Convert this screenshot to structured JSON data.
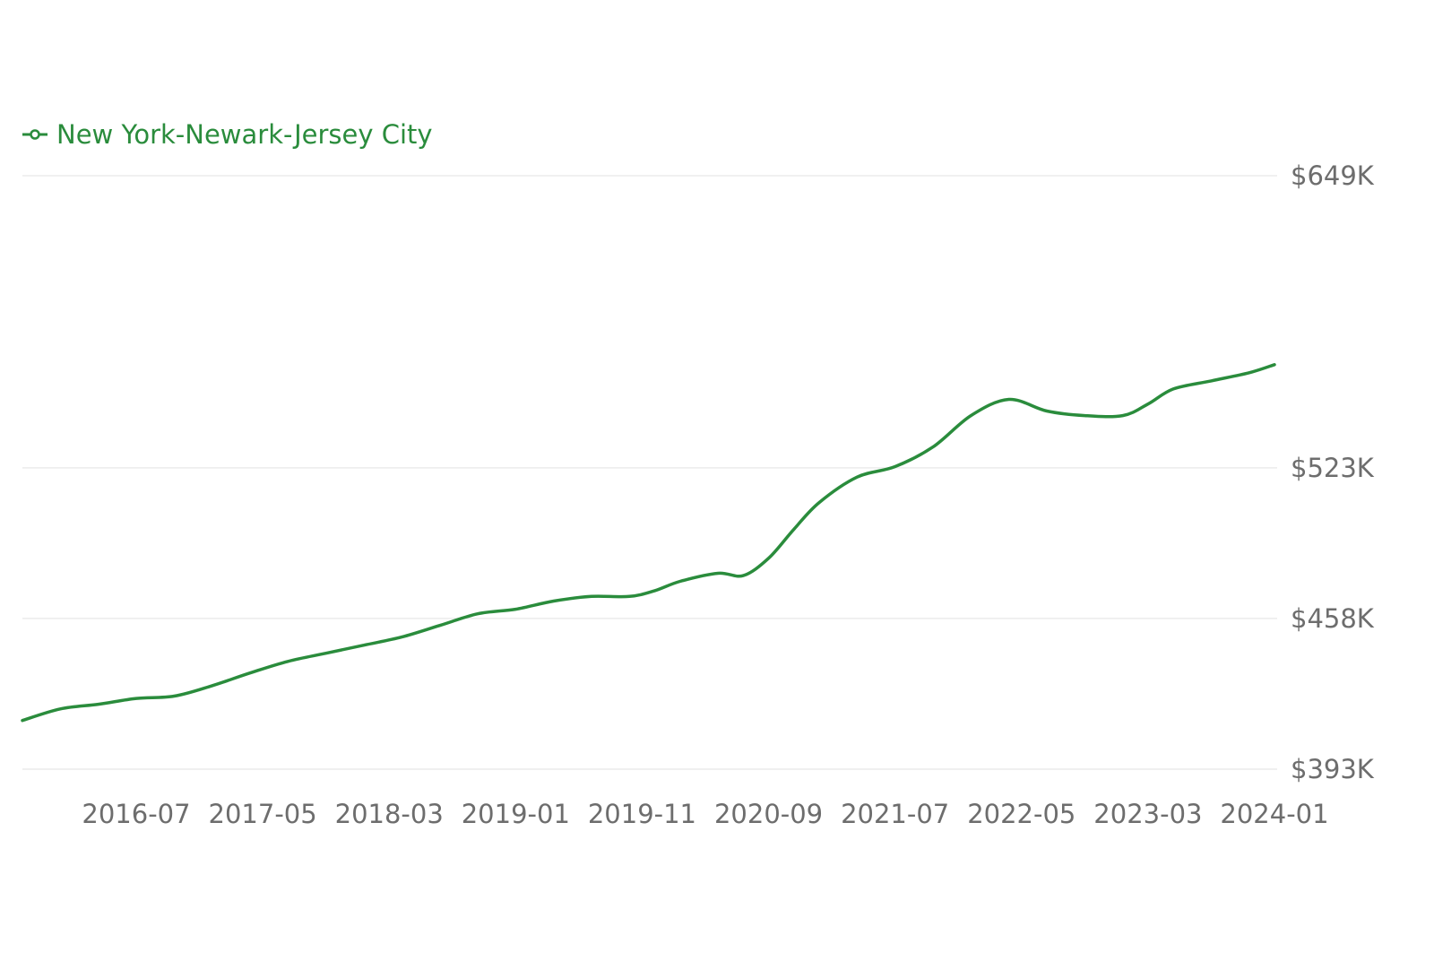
{
  "colors": {
    "series": "#2a8c3c",
    "grid": "#ececec",
    "tick_text": "#6d6d6d",
    "background": "#ffffff"
  },
  "legend": {
    "items": [
      {
        "label": "New York-Newark-Jersey City",
        "icon": "line-circle-marker-icon"
      }
    ]
  },
  "chart_data": {
    "type": "line",
    "title": "",
    "xlabel": "",
    "ylabel": "",
    "legend_position": "top-left",
    "grid": true,
    "y_axis_side": "right",
    "x_tick_labels": [
      "2016-07",
      "2017-05",
      "2018-03",
      "2019-01",
      "2019-11",
      "2020-09",
      "2021-07",
      "2022-05",
      "2023-03",
      "2024-01"
    ],
    "y_tick_values": [
      393000,
      458000,
      523000,
      649000
    ],
    "y_tick_labels": [
      "$393K",
      "$458K",
      "$523K",
      "$649K"
    ],
    "ylim": [
      393000,
      649000
    ],
    "xlim": [
      "2015-10",
      "2024-01"
    ],
    "series": [
      {
        "name": "New York-Newark-Jersey City",
        "x": [
          "2015-10",
          "2016-01",
          "2016-04",
          "2016-07",
          "2016-10",
          "2017-01",
          "2017-04",
          "2017-07",
          "2017-10",
          "2018-01",
          "2018-04",
          "2018-07",
          "2018-10",
          "2019-01",
          "2019-04",
          "2019-07",
          "2019-10",
          "2019-12",
          "2020-02",
          "2020-05",
          "2020-07",
          "2020-09",
          "2020-11",
          "2021-01",
          "2021-04",
          "2021-07",
          "2021-10",
          "2022-01",
          "2022-04",
          "2022-07",
          "2022-10",
          "2023-01",
          "2023-03",
          "2023-05",
          "2023-08",
          "2023-11",
          "2024-01"
        ],
        "values": [
          414000,
          419000,
          421000,
          423500,
          424500,
          429000,
          434500,
          439500,
          443000,
          446500,
          450000,
          455000,
          460000,
          462000,
          465500,
          467500,
          467500,
          470000,
          474000,
          477500,
          476500,
          484000,
          496500,
          508000,
          519000,
          523500,
          532000,
          545500,
          552500,
          547500,
          545500,
          545500,
          550500,
          557000,
          560500,
          564000,
          567500
        ]
      }
    ]
  }
}
